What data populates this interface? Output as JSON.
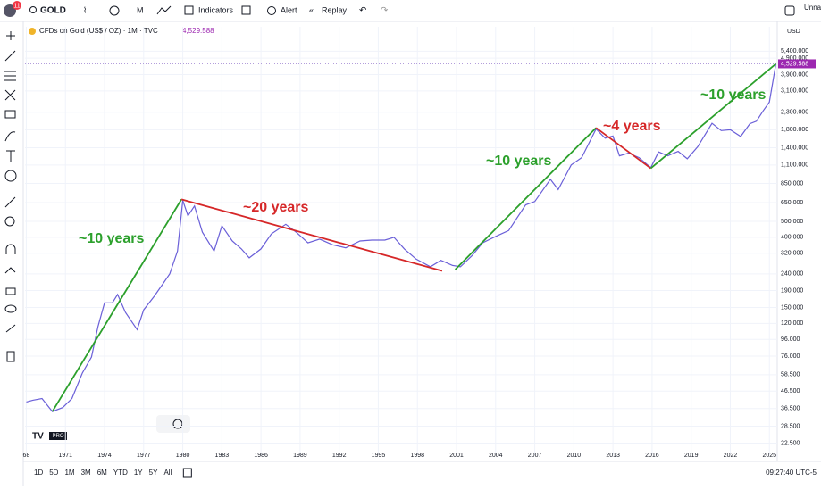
{
  "toolbar": {
    "badge": "11",
    "symbol": "GOLD",
    "interval": "M",
    "indicators": "Indicators",
    "alert": "Alert",
    "replay": "Replay",
    "user": "Unna"
  },
  "chart_data": {
    "type": "line",
    "title": "CFDs on Gold (US$ / OZ) · 1M · TVC",
    "currency": "USD",
    "last_price": {
      "value": 4529.588,
      "label": "4,529.588"
    },
    "log": true,
    "grid": true,
    "xlim": [
      1967.9,
      2025.6
    ],
    "ylim": [
      19,
      7600
    ],
    "xticks": [
      {
        "value": 1968,
        "label": "68"
      },
      1971,
      1974,
      1977,
      1980,
      1983,
      1986,
      1989,
      1992,
      1995,
      1998,
      2001,
      2004,
      2007,
      2010,
      2013,
      2016,
      2019,
      2022,
      2025
    ],
    "yticks": [
      {
        "value": 5400,
        "label": "5,400.000"
      },
      {
        "value": 4900,
        "label": "4,900.000"
      },
      {
        "value": 3900,
        "label": "3,900.000"
      },
      {
        "value": 3100,
        "label": "3,100.000"
      },
      {
        "value": 2300,
        "label": "2,300.000"
      },
      {
        "value": 1800,
        "label": "1,800.000"
      },
      {
        "value": 1400,
        "label": "1,400.000"
      },
      {
        "value": 1100,
        "label": "1,100.000"
      },
      {
        "value": 850,
        "label": "850.000"
      },
      {
        "value": 650,
        "label": "650.000"
      },
      {
        "value": 500,
        "label": "500.000"
      },
      {
        "value": 400,
        "label": "400.000"
      },
      {
        "value": 320,
        "label": "320.000"
      },
      {
        "value": 240,
        "label": "240.000"
      },
      {
        "value": 190,
        "label": "190.000"
      },
      {
        "value": 150,
        "label": "150.000"
      },
      {
        "value": 120,
        "label": "120.000"
      },
      {
        "value": 96,
        "label": "96.000"
      },
      {
        "value": 76,
        "label": "76.000"
      },
      {
        "value": 58.5,
        "label": "58.500"
      },
      {
        "value": 46.5,
        "label": "46.500"
      },
      {
        "value": 36.5,
        "label": "36.500"
      },
      {
        "value": 28.5,
        "label": "28.500"
      },
      {
        "value": 22.5,
        "label": "22.500"
      }
    ],
    "series": [
      {
        "name": "Gold",
        "color": "#6a5fd8",
        "x": [
          1968.0,
          1968.5,
          1969.2,
          1970.0,
          1970.8,
          1971.5,
          1972.3,
          1973.0,
          1973.5,
          1974.0,
          1974.6,
          1975.0,
          1975.6,
          1976.5,
          1977.0,
          1977.8,
          1978.5,
          1979.0,
          1979.6,
          1980.0,
          1980.4,
          1980.9,
          1981.5,
          1982.4,
          1983.0,
          1983.8,
          1984.5,
          1985.1,
          1986.0,
          1986.8,
          1987.9,
          1988.7,
          1989.6,
          1990.5,
          1991.5,
          1992.5,
          1993.6,
          1994.5,
          1995.5,
          1996.2,
          1997.0,
          1997.9,
          1999.0,
          1999.8,
          2000.7,
          2001.3,
          2002.2,
          2003.0,
          2004.0,
          2005.0,
          2006.3,
          2007.0,
          2008.2,
          2008.8,
          2009.8,
          2010.6,
          2011.7,
          2012.4,
          2013.0,
          2013.5,
          2014.2,
          2015.0,
          2015.9,
          2016.5,
          2017.2,
          2018.0,
          2018.7,
          2019.5,
          2020.6,
          2021.3,
          2022.0,
          2022.8,
          2023.5,
          2024.0,
          2024.5,
          2025.0,
          2025.5
        ],
        "values": [
          40,
          41,
          42,
          35,
          37,
          42,
          60,
          75,
          115,
          160,
          160,
          180,
          140,
          110,
          145,
          175,
          210,
          240,
          330,
          670,
          540,
          620,
          430,
          330,
          470,
          380,
          340,
          300,
          340,
          420,
          480,
          430,
          370,
          390,
          360,
          345,
          380,
          385,
          385,
          400,
          340,
          295,
          265,
          290,
          270,
          265,
          310,
          370,
          405,
          440,
          630,
          660,
          900,
          780,
          1100,
          1220,
          1820,
          1600,
          1650,
          1250,
          1300,
          1220,
          1060,
          1320,
          1250,
          1330,
          1200,
          1420,
          1970,
          1780,
          1800,
          1640,
          1960,
          2030,
          2330,
          2650,
          4529.588
        ]
      }
    ],
    "annotations": [
      {
        "text": "~10 years",
        "color": "#2ca02c",
        "from": [
          1970.0,
          35
        ],
        "to": [
          1979.9,
          680
        ]
      },
      {
        "text": "~20 years",
        "color": "#d62728",
        "from": [
          1979.9,
          680
        ],
        "to": [
          1999.9,
          250
        ]
      },
      {
        "text": "~10 years",
        "color": "#2ca02c",
        "from": [
          2000.9,
          255
        ],
        "to": [
          2011.7,
          1850
        ]
      },
      {
        "text": "~4 years",
        "color": "#d62728",
        "from": [
          2011.7,
          1850
        ],
        "to": [
          2015.9,
          1050
        ]
      },
      {
        "text": "~10 years",
        "color": "#2ca02c",
        "from": [
          2015.9,
          1050
        ],
        "to": [
          2025.5,
          4529.588
        ]
      }
    ]
  },
  "bottom_bar": {
    "ranges": [
      "1D",
      "5D",
      "1M",
      "3M",
      "6M",
      "YTD",
      "1Y",
      "5Y",
      "All"
    ],
    "clock": "09:27:40 UTC-5"
  }
}
